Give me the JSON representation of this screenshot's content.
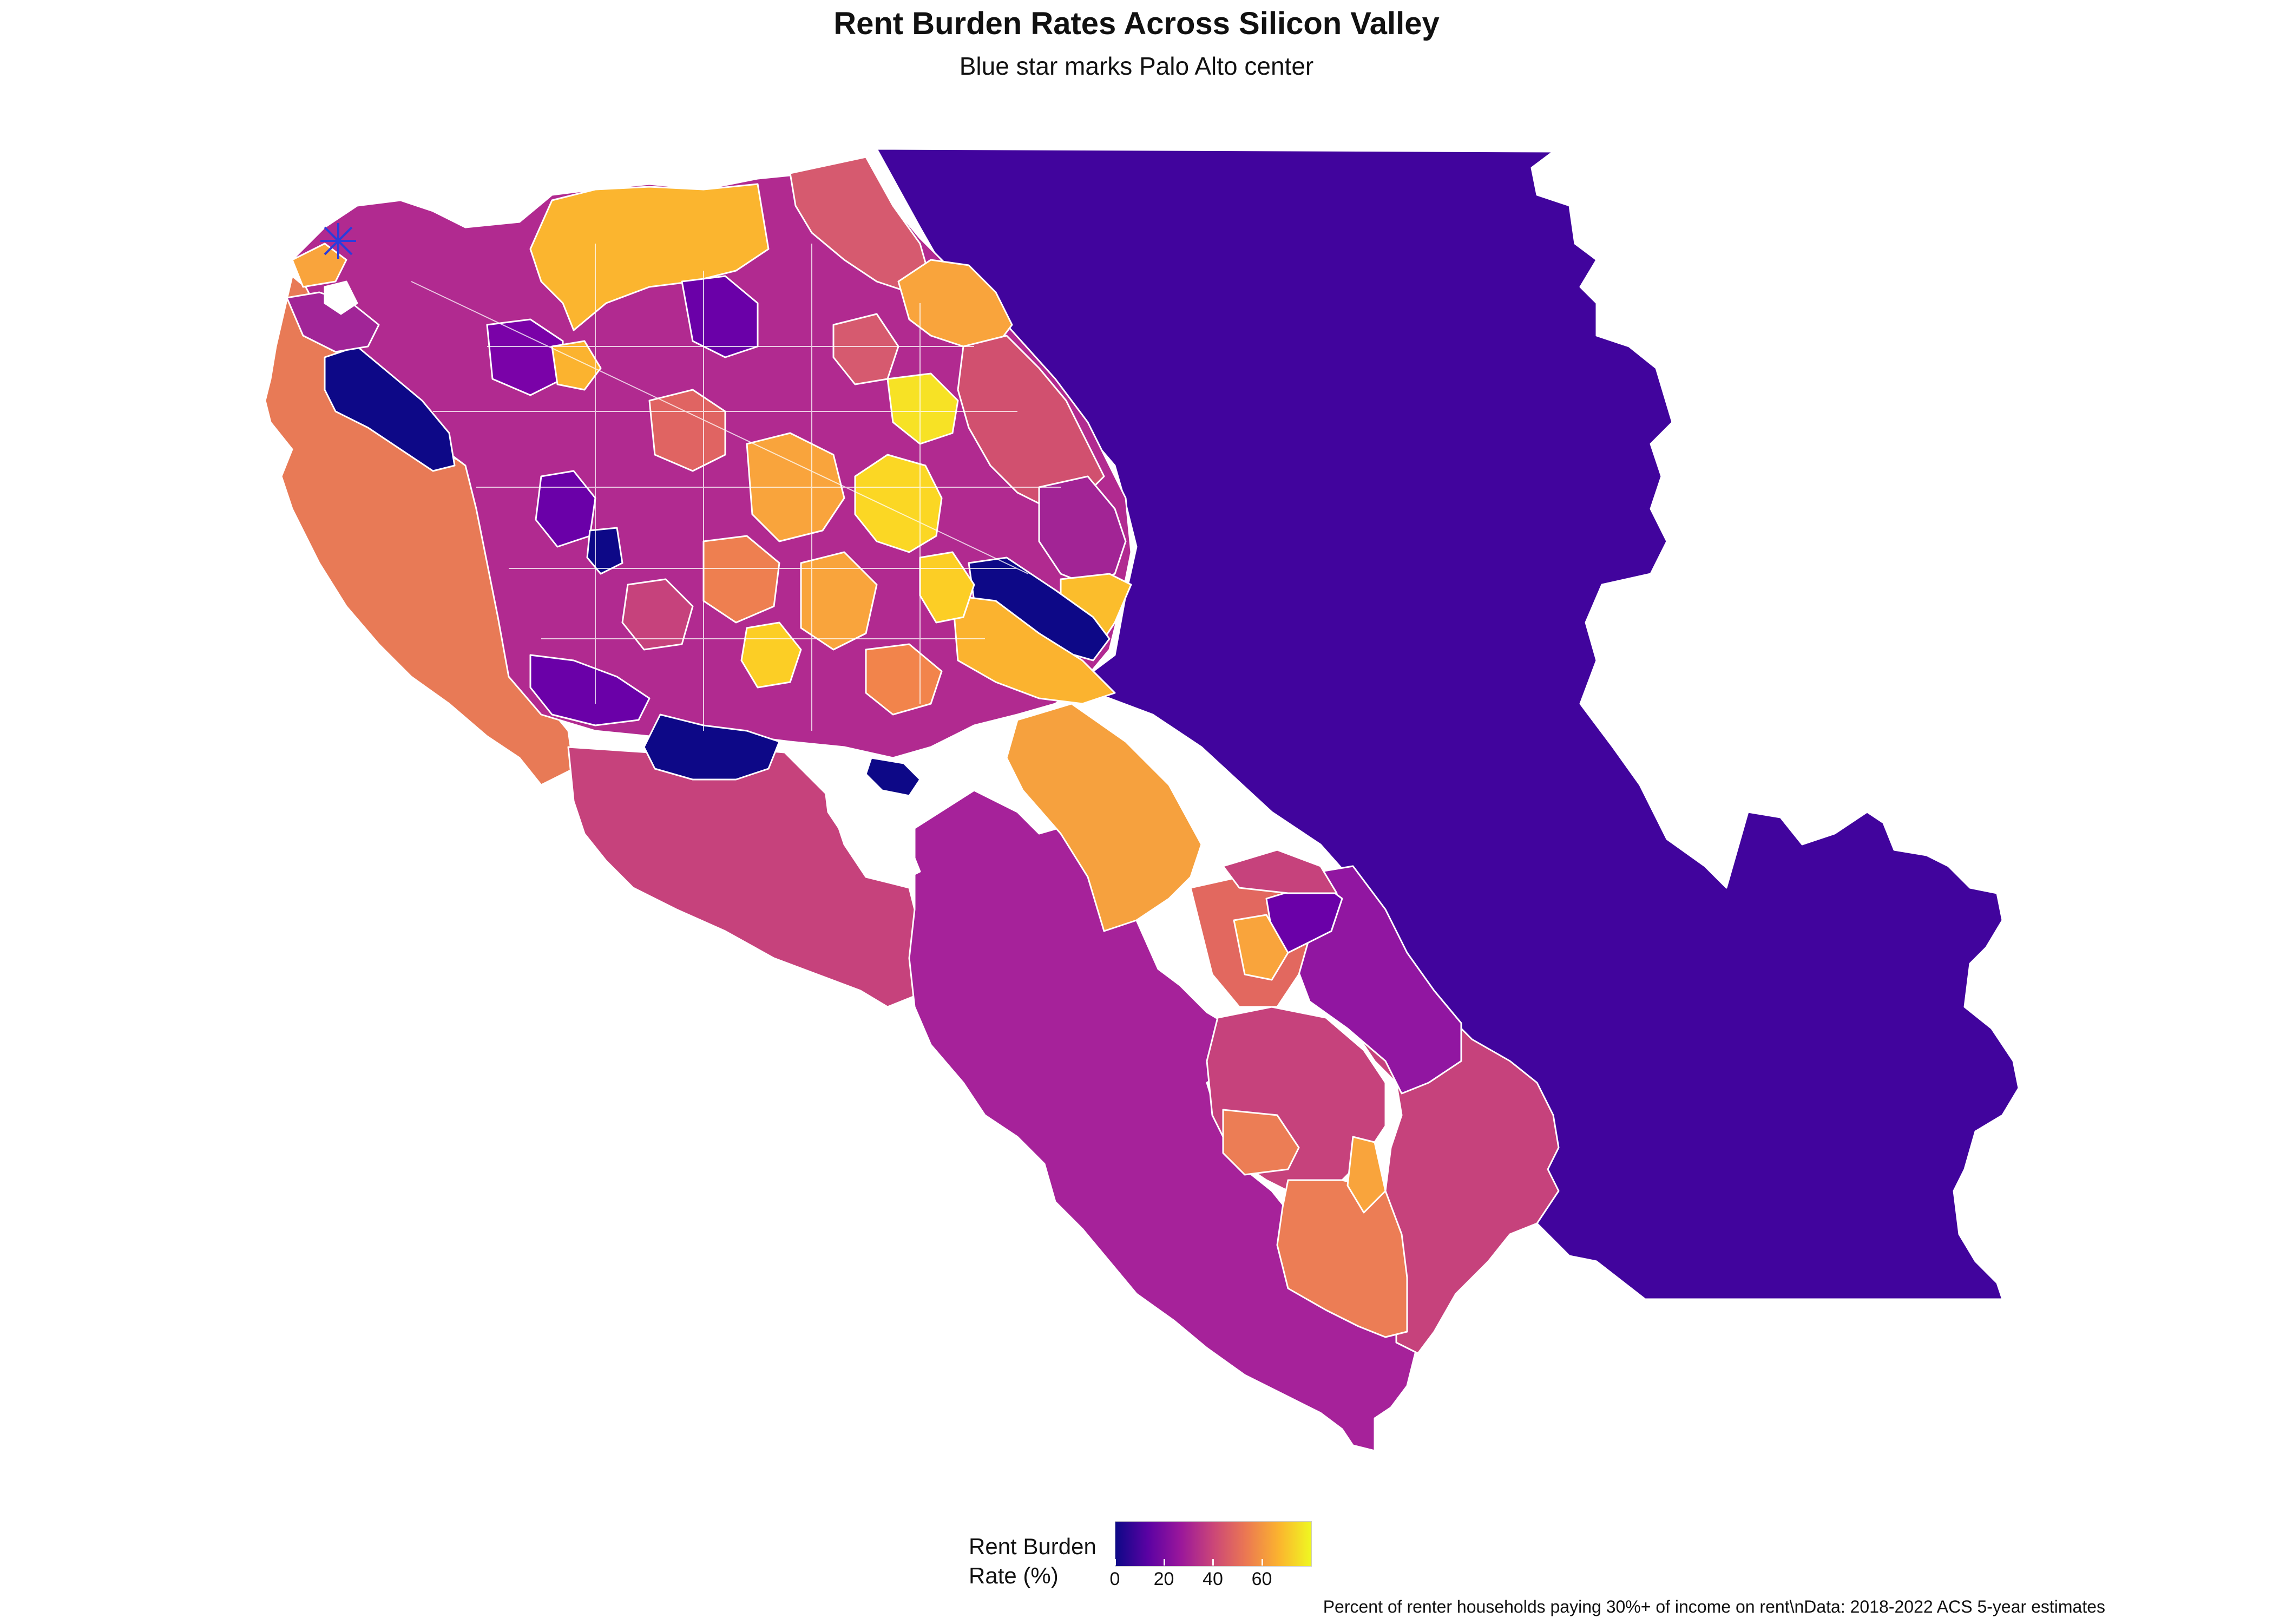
{
  "title": "Rent Burden Rates Across Silicon Valley",
  "subtitle": "Blue star marks Palo Alto center",
  "legend": {
    "title_line1": "Rent Burden",
    "title_line2": "Rate (%)",
    "ticks": [
      "0",
      "20",
      "40",
      "60"
    ],
    "range": [
      0,
      80
    ],
    "colors": [
      "#0d0887",
      "#5b02a3",
      "#9a179b",
      "#cb4678",
      "#eb7852",
      "#fbb32f",
      "#eff821"
    ]
  },
  "caption": "Percent of renter households paying 30%+ of income on rent\\nData: 2018-2022 ACS 5-year estimates",
  "marker": {
    "label": "Palo Alto center",
    "symbol": "star",
    "color": "#2c3cdc"
  },
  "palette": {
    "v0": "#0d0887",
    "v10": "#41049d",
    "v20": "#6a00a8",
    "v30": "#8f0da4",
    "v40": "#b12a90",
    "v50": "#cc4778",
    "v60": "#e16462",
    "v70": "#f2844b",
    "v80": "#fca636",
    "v90": "#fcce25",
    "v100": "#f0f921"
  }
}
